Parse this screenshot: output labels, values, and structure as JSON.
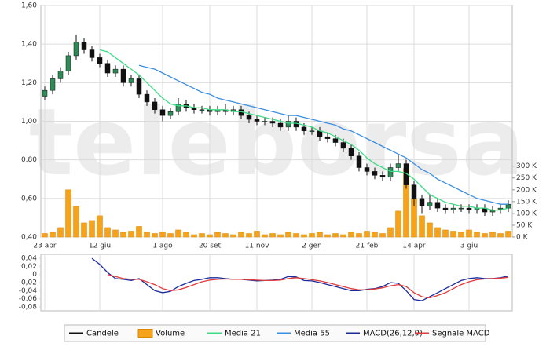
{
  "chart_data": [
    {
      "type": "candlestick",
      "watermark": "teleborsa",
      "categories": [
        "23 apr",
        null,
        null,
        null,
        null,
        null,
        null,
        "12 giu",
        null,
        null,
        null,
        null,
        null,
        null,
        null,
        "1 ago",
        null,
        null,
        null,
        null,
        null,
        "20 set",
        null,
        null,
        null,
        null,
        null,
        "11 nov",
        null,
        null,
        null,
        null,
        null,
        null,
        "2 gen",
        null,
        null,
        null,
        null,
        null,
        null,
        "21 feb",
        null,
        null,
        null,
        null,
        null,
        "14 apr",
        null,
        null,
        null,
        null,
        null,
        null,
        "3 giu",
        null,
        null,
        null,
        null,
        null
      ],
      "ylim": [
        0.4,
        1.6
      ],
      "yticks": [
        {
          "value": 0.4,
          "label": "0,40"
        },
        {
          "value": 0.6,
          "label": "0,60"
        },
        {
          "value": 0.8,
          "label": "0,80"
        },
        {
          "value": 1.0,
          "label": "1,00"
        },
        {
          "value": 1.2,
          "label": "1,20"
        },
        {
          "value": 1.4,
          "label": "1,40"
        },
        {
          "value": 1.6,
          "label": "1,60"
        }
      ],
      "y2lim": [
        0,
        980000
      ],
      "y2ticks": [
        {
          "value": 0,
          "label": "0 K"
        },
        {
          "value": 50000,
          "label": "50 K"
        },
        {
          "value": 100000,
          "label": "100 K"
        },
        {
          "value": 150000,
          "label": "150 K"
        },
        {
          "value": 200000,
          "label": "200 K"
        },
        {
          "value": 250000,
          "label": "250 K"
        },
        {
          "value": 300000,
          "label": "300 K"
        }
      ],
      "grid": true,
      "series": [
        {
          "name": "Candele",
          "color": "#111111",
          "up_color": "#2e8b57",
          "open": [
            1.13,
            1.16,
            1.22,
            1.26,
            1.34,
            1.41,
            1.37,
            1.33,
            1.3,
            1.25,
            1.27,
            1.2,
            1.22,
            1.14,
            1.1,
            1.06,
            1.03,
            1.05,
            1.09,
            1.07,
            1.06,
            1.06,
            1.05,
            1.06,
            1.05,
            1.06,
            1.03,
            1.01,
            1.0,
            1.0,
            0.99,
            0.97,
            1.0,
            0.97,
            0.95,
            0.95,
            0.92,
            0.91,
            0.89,
            0.86,
            0.82,
            0.76,
            0.74,
            0.72,
            0.71,
            0.76,
            0.78,
            0.67,
            0.6,
            0.56,
            0.58,
            0.55,
            0.54,
            0.55,
            0.55,
            0.54,
            0.55,
            0.53,
            0.54,
            0.55
          ],
          "high": [
            1.18,
            1.24,
            1.28,
            1.36,
            1.45,
            1.43,
            1.39,
            1.35,
            1.32,
            1.29,
            1.29,
            1.24,
            1.24,
            1.16,
            1.12,
            1.08,
            1.07,
            1.12,
            1.11,
            1.09,
            1.08,
            1.08,
            1.08,
            1.09,
            1.08,
            1.08,
            1.05,
            1.03,
            1.02,
            1.02,
            1.01,
            1.03,
            1.02,
            0.99,
            0.97,
            0.97,
            0.94,
            0.93,
            0.91,
            0.88,
            0.84,
            0.78,
            0.76,
            0.74,
            0.78,
            0.83,
            0.8,
            0.69,
            0.62,
            0.62,
            0.6,
            0.57,
            0.57,
            0.57,
            0.57,
            0.57,
            0.57,
            0.56,
            0.57,
            0.59
          ],
          "low": [
            1.11,
            1.14,
            1.2,
            1.24,
            1.32,
            1.35,
            1.31,
            1.28,
            1.23,
            1.23,
            1.18,
            1.18,
            1.12,
            1.08,
            1.04,
            1.0,
            1.01,
            1.03,
            1.05,
            1.04,
            1.04,
            1.03,
            1.03,
            1.03,
            1.03,
            1.01,
            0.99,
            0.98,
            0.98,
            0.97,
            0.95,
            0.95,
            0.95,
            0.93,
            0.93,
            0.9,
            0.89,
            0.87,
            0.84,
            0.8,
            0.74,
            0.72,
            0.7,
            0.69,
            0.69,
            0.74,
            0.65,
            0.56,
            0.52,
            0.54,
            0.53,
            0.52,
            0.52,
            0.53,
            0.52,
            0.52,
            0.51,
            0.51,
            0.52,
            0.53
          ],
          "close": [
            1.16,
            1.22,
            1.26,
            1.34,
            1.41,
            1.37,
            1.33,
            1.3,
            1.25,
            1.27,
            1.2,
            1.22,
            1.14,
            1.1,
            1.06,
            1.03,
            1.05,
            1.09,
            1.07,
            1.06,
            1.06,
            1.05,
            1.06,
            1.05,
            1.06,
            1.03,
            1.01,
            1.0,
            1.0,
            0.99,
            0.97,
            1.0,
            0.97,
            0.95,
            0.95,
            0.92,
            0.91,
            0.89,
            0.86,
            0.82,
            0.76,
            0.74,
            0.72,
            0.71,
            0.76,
            0.78,
            0.67,
            0.6,
            0.56,
            0.58,
            0.55,
            0.54,
            0.55,
            0.55,
            0.54,
            0.55,
            0.53,
            0.54,
            0.55,
            0.57
          ]
        },
        {
          "name": "Volume",
          "color": "#f7a21b",
          "axis": "y2",
          "values": [
            15000,
            20000,
            40000,
            200000,
            130000,
            60000,
            70000,
            90000,
            40000,
            30000,
            20000,
            25000,
            45000,
            20000,
            15000,
            20000,
            15000,
            30000,
            20000,
            10000,
            15000,
            10000,
            20000,
            15000,
            10000,
            20000,
            15000,
            25000,
            10000,
            15000,
            10000,
            20000,
            15000,
            10000,
            15000,
            20000,
            10000,
            15000,
            10000,
            20000,
            15000,
            25000,
            20000,
            15000,
            40000,
            110000,
            290000,
            160000,
            90000,
            60000,
            40000,
            30000,
            25000,
            20000,
            30000,
            20000,
            15000,
            20000,
            15000,
            25000
          ]
        },
        {
          "name": "Media 21",
          "color": "#3ddc84",
          "values": [
            null,
            null,
            null,
            null,
            null,
            null,
            null,
            1.37,
            1.36,
            1.33,
            1.3,
            1.27,
            1.24,
            1.2,
            1.16,
            1.12,
            1.09,
            1.08,
            1.08,
            1.07,
            1.07,
            1.06,
            1.06,
            1.06,
            1.05,
            1.05,
            1.04,
            1.03,
            1.02,
            1.01,
            1.0,
            0.99,
            0.99,
            0.98,
            0.97,
            0.95,
            0.94,
            0.92,
            0.9,
            0.88,
            0.85,
            0.81,
            0.78,
            0.76,
            0.74,
            0.74,
            0.73,
            0.7,
            0.66,
            0.62,
            0.6,
            0.58,
            0.57,
            0.56,
            0.56,
            0.55,
            0.55,
            0.54,
            0.54,
            0.55
          ]
        },
        {
          "name": "Media 55",
          "color": "#3b8fe0",
          "values": [
            null,
            null,
            null,
            null,
            null,
            null,
            null,
            null,
            null,
            null,
            null,
            null,
            1.29,
            1.28,
            1.27,
            1.25,
            1.23,
            1.21,
            1.19,
            1.17,
            1.15,
            1.14,
            1.12,
            1.11,
            1.1,
            1.09,
            1.08,
            1.07,
            1.06,
            1.05,
            1.04,
            1.03,
            1.03,
            1.02,
            1.01,
            1.0,
            0.99,
            0.98,
            0.96,
            0.95,
            0.93,
            0.91,
            0.89,
            0.87,
            0.85,
            0.83,
            0.81,
            0.78,
            0.75,
            0.73,
            0.7,
            0.68,
            0.66,
            0.64,
            0.62,
            0.6,
            0.59,
            0.58,
            0.57,
            0.57
          ]
        }
      ]
    },
    {
      "type": "line",
      "ylim": [
        -0.09,
        0.05
      ],
      "yticks": [
        {
          "value": -0.08,
          "label": "-0,08"
        },
        {
          "value": -0.06,
          "label": "-0,06"
        },
        {
          "value": -0.04,
          "label": "-0,04"
        },
        {
          "value": -0.02,
          "label": "-0,02"
        },
        0,
        {
          "value": 0.02,
          "label": "0,02"
        },
        {
          "value": 0.04,
          "label": "0,04"
        }
      ],
      "series": [
        {
          "name": "MACD(26,12,9)",
          "color": "#1c2b9c",
          "values": [
            null,
            null,
            null,
            null,
            null,
            null,
            0.04,
            0.025,
            0.005,
            -0.01,
            -0.012,
            -0.015,
            -0.01,
            -0.025,
            -0.04,
            -0.045,
            -0.042,
            -0.03,
            -0.022,
            -0.015,
            -0.012,
            -0.008,
            -0.008,
            -0.01,
            -0.012,
            -0.012,
            -0.014,
            -0.016,
            -0.015,
            -0.014,
            -0.012,
            -0.005,
            -0.006,
            -0.015,
            -0.016,
            -0.02,
            -0.025,
            -0.03,
            -0.035,
            -0.04,
            -0.04,
            -0.037,
            -0.035,
            -0.03,
            -0.02,
            -0.022,
            -0.04,
            -0.062,
            -0.065,
            -0.055,
            -0.045,
            -0.035,
            -0.025,
            -0.015,
            -0.01,
            -0.008,
            -0.01,
            -0.01,
            -0.008,
            -0.004
          ]
        },
        {
          "name": "Segnale MACD",
          "color": "#e03a3a",
          "values": [
            null,
            null,
            null,
            null,
            null,
            null,
            null,
            null,
            0.0,
            -0.005,
            -0.01,
            -0.012,
            -0.012,
            -0.018,
            -0.025,
            -0.035,
            -0.04,
            -0.038,
            -0.032,
            -0.025,
            -0.018,
            -0.014,
            -0.012,
            -0.011,
            -0.012,
            -0.012,
            -0.013,
            -0.014,
            -0.015,
            -0.015,
            -0.014,
            -0.01,
            -0.008,
            -0.01,
            -0.013,
            -0.016,
            -0.02,
            -0.025,
            -0.03,
            -0.035,
            -0.038,
            -0.038,
            -0.036,
            -0.033,
            -0.028,
            -0.025,
            -0.03,
            -0.045,
            -0.055,
            -0.058,
            -0.052,
            -0.045,
            -0.035,
            -0.025,
            -0.018,
            -0.013,
            -0.011,
            -0.01,
            -0.009,
            -0.007
          ]
        }
      ]
    }
  ]
}
